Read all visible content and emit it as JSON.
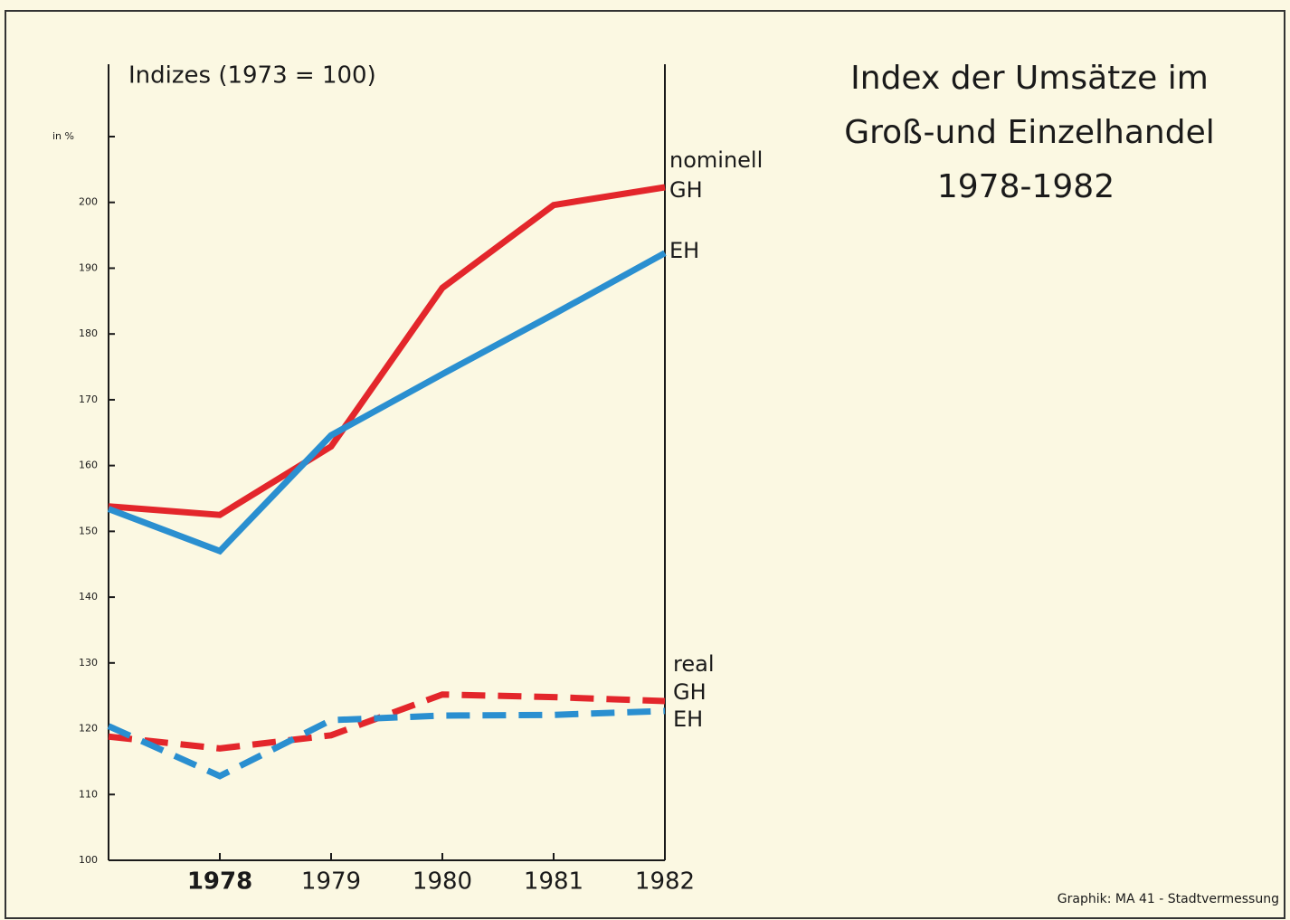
{
  "chart_data": {
    "type": "line",
    "title_lines": [
      "Index der Umsätze im",
      "Groß-und Einzelhandel",
      "1978-1982"
    ],
    "subtitle": "Indizes (1973 = 100)",
    "y_unit_label": "in %",
    "credit": "Graphik: MA 41 - Stadtvermessung",
    "categories": [
      null,
      "1978",
      "1979",
      "1980",
      "1981",
      "1982"
    ],
    "ylim": [
      100,
      221
    ],
    "yticks": [
      100,
      110,
      120,
      130,
      140,
      150,
      160,
      170,
      180,
      190,
      200
    ],
    "minor_yticks": [
      210
    ],
    "groups": [
      {
        "label": "nominell",
        "dashed": false,
        "series": [
          {
            "name": "GH",
            "color": "#e3262b",
            "values": [
              153.8,
              152.5,
              162.9,
              187,
              199.6,
              202.3
            ]
          },
          {
            "name": "EH",
            "color": "#2a8fd0",
            "values": [
              153.4,
              147,
              164.6,
              173.9,
              183,
              192.3
            ]
          }
        ]
      },
      {
        "label": "real",
        "dashed": true,
        "series": [
          {
            "name": "GH",
            "color": "#e3262b",
            "values": [
              118.8,
              117,
              119,
              125.2,
              124.8,
              124.2
            ]
          },
          {
            "name": "EH",
            "color": "#2a8fd0",
            "values": [
              120.4,
              112.8,
              121.3,
              122,
              122.1,
              122.7
            ]
          }
        ]
      }
    ]
  }
}
